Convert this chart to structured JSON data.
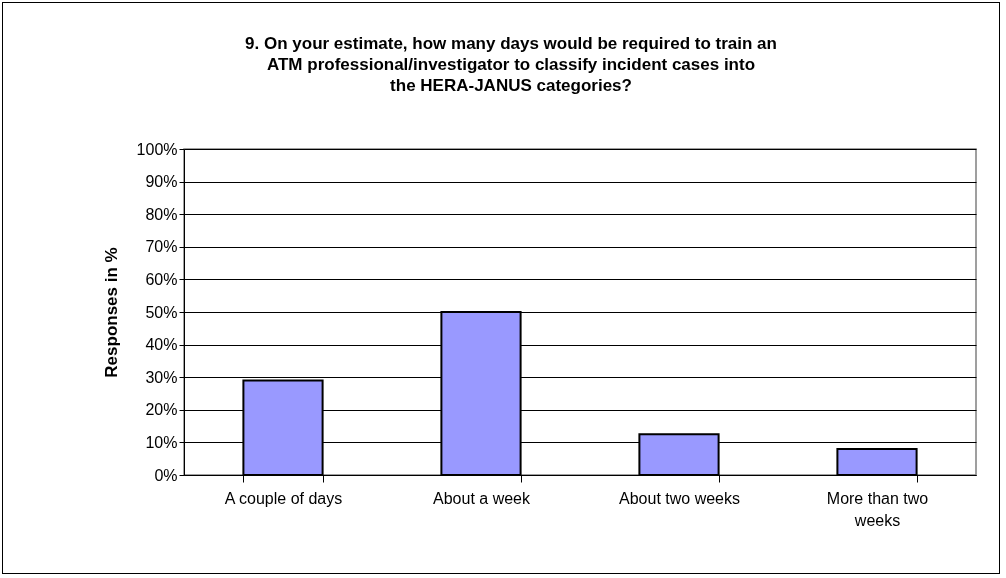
{
  "chart_data": {
    "type": "bar",
    "title": "9. On your estimate, how many days would be required to train an ATM professional/investigator to classify incident cases into the HERA-JANUS categories?",
    "ylabel": "Responses in %",
    "categories": [
      "A couple of days",
      "About a week",
      "About two weeks",
      "More than two weeks"
    ],
    "values": [
      29,
      50,
      12.5,
      8
    ],
    "color": "#9999ff",
    "ylim": [
      0,
      100
    ],
    "yticks": [
      {
        "value": 0,
        "label": "0%"
      },
      {
        "value": 10,
        "label": "10%"
      },
      {
        "value": 20,
        "label": "20%"
      },
      {
        "value": 30,
        "label": "30%"
      },
      {
        "value": 40,
        "label": "40%"
      },
      {
        "value": 50,
        "label": "50%"
      },
      {
        "value": 60,
        "label": "60%"
      },
      {
        "value": 70,
        "label": "70%"
      },
      {
        "value": 80,
        "label": "80%"
      },
      {
        "value": 90,
        "label": "90%"
      },
      {
        "value": 100,
        "label": "100%"
      }
    ],
    "grid": "y"
  }
}
